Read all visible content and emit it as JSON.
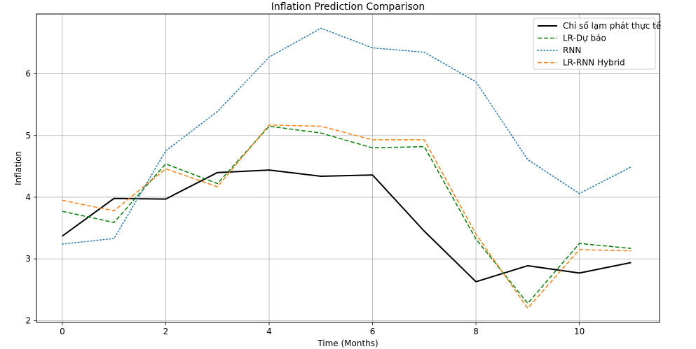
{
  "chart_data": {
    "type": "line",
    "title": "Inflation Prediction Comparison",
    "xlabel": "Time (Months)",
    "ylabel": "Inflation",
    "x": [
      0,
      1,
      2,
      3,
      4,
      5,
      6,
      7,
      8,
      9,
      10,
      11
    ],
    "xlim": [
      -0.5,
      11.55
    ],
    "ylim": [
      1.97,
      6.97
    ],
    "xticks": [
      0,
      2,
      4,
      6,
      8,
      10
    ],
    "yticks": [
      2,
      3,
      4,
      5,
      6
    ],
    "grid": true,
    "legend_position": "top-right",
    "series": [
      {
        "name": "Chỉ số lạm phát thực tế",
        "color": "#000000",
        "style": "solid",
        "values": [
          3.37,
          3.98,
          3.97,
          4.4,
          4.44,
          4.34,
          4.36,
          3.45,
          2.63,
          2.89,
          2.77,
          2.94
        ]
      },
      {
        "name": "LR-Dự báo",
        "color": "#008000",
        "style": "dashed",
        "values": [
          3.77,
          3.59,
          4.54,
          4.22,
          5.15,
          5.04,
          4.8,
          4.82,
          3.32,
          2.28,
          3.25,
          3.17
        ]
      },
      {
        "name": "RNN",
        "color": "#1f77b4",
        "style": "dotted",
        "values": [
          3.24,
          3.33,
          4.75,
          5.39,
          6.27,
          6.74,
          6.42,
          6.35,
          5.87,
          4.61,
          4.06,
          4.49
        ]
      },
      {
        "name": "LR-RNN Hybrid",
        "color": "#ff7f0e",
        "style": "dashed",
        "values": [
          3.95,
          3.78,
          4.46,
          4.17,
          5.17,
          5.15,
          4.93,
          4.93,
          3.4,
          2.2,
          3.15,
          3.13
        ]
      }
    ]
  }
}
